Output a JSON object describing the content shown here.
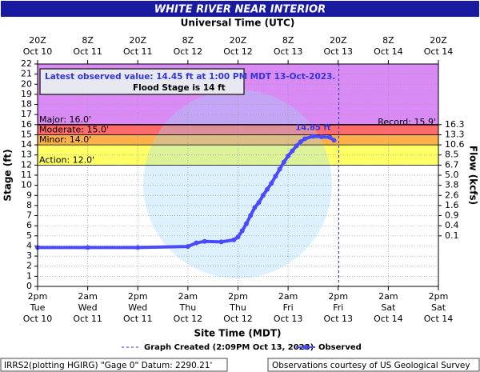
{
  "chart_data": {
    "type": "line",
    "title": "WHITE RIVER NEAR INTERIOR",
    "top_axis_label": "Universal Time (UTC)",
    "xlabel": "Site Time (MDT)",
    "ylabel": "Stage (ft)",
    "y2label": "Flow (kcfs)",
    "xlim": [
      "2023-10-10T14:00",
      "2023-10-14T14:00"
    ],
    "xticks": [
      {
        "value": "2023-10-10T14:00",
        "label": [
          "2pm",
          "Tue",
          "Oct 10"
        ]
      },
      {
        "value": "2023-10-11T02:00",
        "label": [
          "2am",
          "Wed",
          "Oct 11"
        ]
      },
      {
        "value": "2023-10-11T14:00",
        "label": [
          "2pm",
          "Wed",
          "Oct 11"
        ]
      },
      {
        "value": "2023-10-12T02:00",
        "label": [
          "2am",
          "Thu",
          "Oct 12"
        ]
      },
      {
        "value": "2023-10-12T14:00",
        "label": [
          "2pm",
          "Thu",
          "Oct 12"
        ]
      },
      {
        "value": "2023-10-13T02:00",
        "label": [
          "2am",
          "Fri",
          "Oct 13"
        ]
      },
      {
        "value": "2023-10-13T14:00",
        "label": [
          "2pm",
          "Fri",
          "Oct 13"
        ]
      },
      {
        "value": "2023-10-14T02:00",
        "label": [
          "2am",
          "Sat",
          "Oct 14"
        ]
      },
      {
        "value": "2023-10-14T14:00",
        "label": [
          "2pm",
          "Sat",
          "Oct 14"
        ]
      }
    ],
    "utc_ticks": [
      {
        "value": "2023-10-10T14:00",
        "label": [
          "20Z",
          "Oct 10"
        ]
      },
      {
        "value": "2023-10-11T02:00",
        "label": [
          "8Z",
          "Oct 11"
        ]
      },
      {
        "value": "2023-10-11T14:00",
        "label": [
          "20Z",
          "Oct 11"
        ]
      },
      {
        "value": "2023-10-12T02:00",
        "label": [
          "8Z",
          "Oct 12"
        ]
      },
      {
        "value": "2023-10-12T14:00",
        "label": [
          "20Z",
          "Oct 12"
        ]
      },
      {
        "value": "2023-10-13T02:00",
        "label": [
          "8Z",
          "Oct 13"
        ]
      },
      {
        "value": "2023-10-13T14:00",
        "label": [
          "20Z",
          "Oct 13"
        ]
      },
      {
        "value": "2023-10-14T02:00",
        "label": [
          "8Z",
          "Oct 14"
        ]
      },
      {
        "value": "2023-10-14T14:00",
        "label": [
          "20Z",
          "Oct 14"
        ]
      }
    ],
    "ylim": [
      0,
      22
    ],
    "yticks": [
      0,
      1,
      2,
      3,
      4,
      5,
      6,
      7,
      8,
      9,
      10,
      11,
      12,
      13,
      14,
      15,
      16,
      17,
      18,
      19,
      20,
      21,
      22
    ],
    "y2ticks": [
      {
        "stage": 16,
        "value": 16.3,
        "label": "16.3"
      },
      {
        "stage": 15,
        "value": 13.3,
        "label": "13.3"
      },
      {
        "stage": 14,
        "value": 10.6,
        "label": "10.6"
      },
      {
        "stage": 13,
        "value": 8.5,
        "label": "8.5"
      },
      {
        "stage": 12,
        "value": 6.7,
        "label": "6.7"
      },
      {
        "stage": 11,
        "value": 5,
        "label": "5.0"
      },
      {
        "stage": 10,
        "value": 3.8,
        "label": "3.8"
      },
      {
        "stage": 9,
        "value": 2.6,
        "label": "2.6"
      },
      {
        "stage": 8,
        "value": 1.6,
        "label": "1.6"
      },
      {
        "stage": 7,
        "value": 0.9,
        "label": "0.9"
      },
      {
        "stage": 6,
        "value": 0.4,
        "label": "0.4"
      },
      {
        "stage": 5,
        "value": 0.1,
        "label": "0.1"
      }
    ],
    "grid": true,
    "flood_stages": [
      {
        "label": "Action: 12.0'",
        "value": 12,
        "color": "#ffff66"
      },
      {
        "label": "Minor: 14.0'",
        "value": 14,
        "color": "#ffb04a"
      },
      {
        "label": "Moderate: 15.0'",
        "value": 15,
        "color": "#ff6a6a"
      },
      {
        "label": "Major: 16.0'",
        "value": 16,
        "color": "#d98af5"
      }
    ],
    "record": {
      "label": "Record: 15.9'",
      "value": 15.9
    },
    "latest_text": "Latest observed value: 14.45 ft at 1:00 PM MDT 13-Oct-2023.",
    "flood_text": "Flood Stage is 14 ft",
    "peak": {
      "label": "14.85 ft",
      "x": "2023-10-13T08:00",
      "value": 14.85
    },
    "created": {
      "label": "Graph Created (2:09PM Oct 13, 2023)",
      "x": "2023-10-13T14:09"
    },
    "series": [
      {
        "name": "Observed",
        "color": "#4a4aff",
        "x": [
          "2023-10-10T14:00",
          "2023-10-11T02:00",
          "2023-10-11T14:00",
          "2023-10-12T02:00",
          "2023-10-12T04:00",
          "2023-10-12T06:00",
          "2023-10-12T10:00",
          "2023-10-12T13:00",
          "2023-10-12T14:00",
          "2023-10-12T15:00",
          "2023-10-12T16:00",
          "2023-10-12T17:00",
          "2023-10-12T18:00",
          "2023-10-12T19:00",
          "2023-10-12T20:00",
          "2023-10-12T21:00",
          "2023-10-12T22:00",
          "2023-10-12T23:00",
          "2023-10-13T00:00",
          "2023-10-13T01:00",
          "2023-10-13T02:00",
          "2023-10-13T03:00",
          "2023-10-13T04:00",
          "2023-10-13T05:00",
          "2023-10-13T06:00",
          "2023-10-13T08:00",
          "2023-10-13T10:00",
          "2023-10-13T12:00",
          "2023-10-13T13:00"
        ],
        "values": [
          3.85,
          3.85,
          3.85,
          3.95,
          4.3,
          4.45,
          4.4,
          4.6,
          4.9,
          5.5,
          6.2,
          7.0,
          7.8,
          8.3,
          9.0,
          9.6,
          10.2,
          10.9,
          11.6,
          12.3,
          12.9,
          13.4,
          13.9,
          14.3,
          14.6,
          14.85,
          14.8,
          14.75,
          14.45
        ]
      }
    ],
    "footer_left": "IRRS2(plotting HGIRG) \"Gage 0\" Datum: 2290.21'",
    "footer_right": "Observations courtesy of US Geological Survey"
  }
}
